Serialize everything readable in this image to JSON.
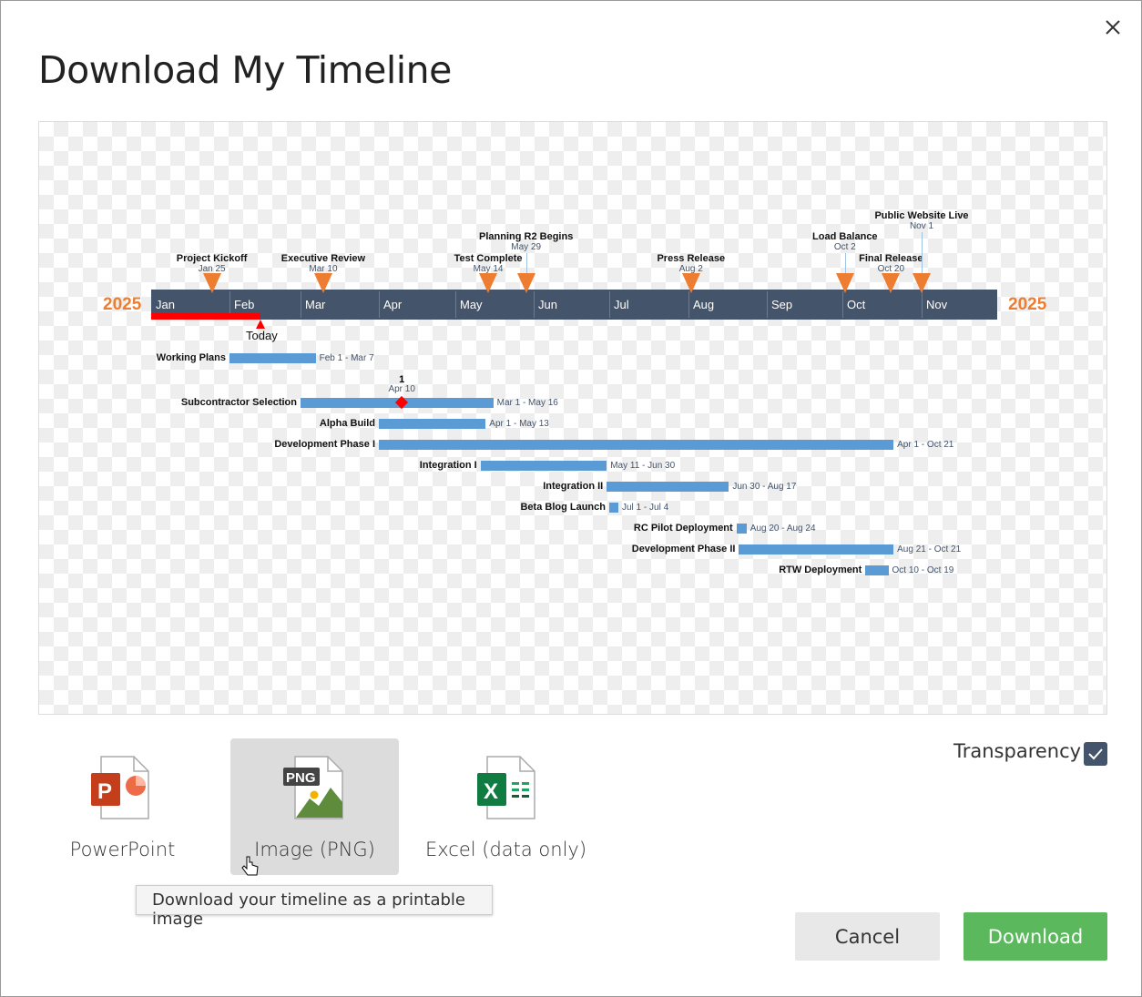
{
  "dialog": {
    "title": "Download My Timeline"
  },
  "timeline": {
    "year_left": "2025",
    "year_right": "2025",
    "months": [
      "Jan",
      "Feb",
      "Mar",
      "Apr",
      "May",
      "Jun",
      "Jul",
      "Aug",
      "Sep",
      "Oct",
      "Nov"
    ],
    "today_label": "Today",
    "colors": {
      "axis": "#44546a",
      "milestone": "#ed7d31",
      "task": "#5b9bd5",
      "today": "#ff0000"
    },
    "milestones": [
      {
        "name": "Project Kickoff",
        "date": "Jan 25"
      },
      {
        "name": "Executive Review",
        "date": "Mar 10"
      },
      {
        "name": "Test Complete",
        "date": "May 14"
      },
      {
        "name": "Planning R2 Begins",
        "date": "May 29"
      },
      {
        "name": "Press Release",
        "date": "Aug 2"
      },
      {
        "name": "Load Balance",
        "date": "Oct 2"
      },
      {
        "name": "Final Release",
        "date": "Oct 20"
      },
      {
        "name": "Public Website Live",
        "date": "Nov 1"
      }
    ],
    "tasks": [
      {
        "name": "Working Plans",
        "range": "Feb 1 - Mar 7"
      },
      {
        "name": "Subcontractor Selection",
        "range": "Mar 1 - May 16",
        "marker": {
          "label": "1",
          "date": "Apr 10"
        }
      },
      {
        "name": "Alpha Build",
        "range": "Apr 1 - May 13"
      },
      {
        "name": "Development Phase I",
        "range": "Apr 1 - Oct 21"
      },
      {
        "name": "Integration I",
        "range": "May 11 - Jun 30"
      },
      {
        "name": "Integration II",
        "range": "Jun 30 - Aug 17"
      },
      {
        "name": "Beta Blog Launch",
        "range": "Jul 1 - Jul 4"
      },
      {
        "name": "RC Pilot Deployment",
        "range": "Aug 20 - Aug 24"
      },
      {
        "name": "Development Phase II",
        "range": "Aug 21 - Oct 21"
      },
      {
        "name": "RTW Deployment",
        "range": "Oct 10 - Oct 19"
      }
    ]
  },
  "options": [
    {
      "label": "PowerPoint",
      "icon": "powerpoint-file-icon"
    },
    {
      "label": "Image (PNG)",
      "icon": "png-file-icon",
      "selected": true,
      "badge": "PNG"
    },
    {
      "label": "Excel (data only)",
      "icon": "excel-file-icon"
    }
  ],
  "tooltip": "Download your timeline as a printable image",
  "transparency": {
    "label": "Transparency",
    "checked": true
  },
  "buttons": {
    "cancel": "Cancel",
    "download": "Download"
  }
}
